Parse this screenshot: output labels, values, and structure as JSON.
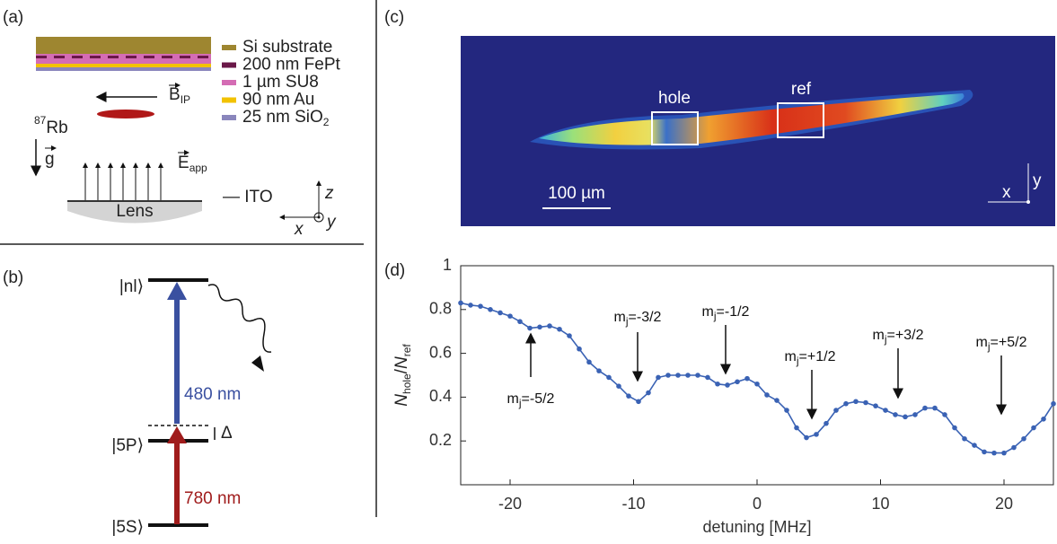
{
  "panels": {
    "a": {
      "label": "(a)",
      "layers": [
        {
          "name": "Si substrate",
          "color": "#9e8630"
        },
        {
          "name": "200 nm FePt",
          "color": "#6a1848"
        },
        {
          "name": "1 µm SU8",
          "color": "#d46cb4"
        },
        {
          "name": "90 nm Au",
          "color": "#f2c200"
        },
        {
          "name": "25 nm SiO",
          "sub": "2",
          "color": "#8a86bc"
        }
      ],
      "atom": {
        "sup": "87",
        "text": "Rb"
      },
      "field": {
        "symbol": "B",
        "sub": "IP"
      },
      "gravity": "g",
      "efield": {
        "symbol": "E",
        "sub": "app"
      },
      "lens": "Lens",
      "ito": "— ITO",
      "axes": {
        "z": "z",
        "x": "x",
        "y": "y"
      }
    },
    "b": {
      "label": "(b)",
      "upper": "|nl⟩",
      "middle": "|5P⟩",
      "lower": "|5S⟩",
      "blue": "480 nm",
      "red": "780 nm",
      "detuning": "Δ"
    },
    "c": {
      "label": "(c)",
      "hole": "hole",
      "ref": "ref",
      "scale": "100 µm",
      "x": "x",
      "y": "y"
    },
    "d": {
      "label": "(d)"
    }
  },
  "chart_data": {
    "type": "line",
    "color": "#3a62b4",
    "xlabel": "detuning [MHz]",
    "ylabel": {
      "base1": "N",
      "sub1": "hole",
      "slash": "/",
      "base2": "N",
      "sub2": "ref"
    },
    "xlim": [
      -24,
      24
    ],
    "xticks": [
      -20,
      -10,
      0,
      10,
      20
    ],
    "ylim": [
      0,
      1
    ],
    "yticks": [
      0.2,
      0.4,
      0.6,
      0.8,
      1
    ],
    "x": [
      -24,
      -23.2,
      -22.4,
      -21.6,
      -20.8,
      -20,
      -19.2,
      -18.4,
      -17.6,
      -16.8,
      -16,
      -15.2,
      -14.4,
      -13.6,
      -12.8,
      -12,
      -11.2,
      -10.4,
      -9.6,
      -8.8,
      -8,
      -7.2,
      -6.4,
      -5.6,
      -4.8,
      -4,
      -3.2,
      -2.4,
      -1.6,
      -0.8,
      0,
      0.8,
      1.6,
      2.4,
      3.2,
      4,
      4.8,
      5.6,
      6.4,
      7.2,
      8,
      8.8,
      9.6,
      10.4,
      11.2,
      12,
      12.8,
      13.6,
      14.4,
      15.2,
      16,
      16.8,
      17.6,
      18.4,
      19.2,
      20,
      20.8,
      21.6,
      22.4,
      23.2,
      24
    ],
    "values": [
      0.83,
      0.82,
      0.815,
      0.8,
      0.785,
      0.77,
      0.745,
      0.715,
      0.72,
      0.725,
      0.71,
      0.68,
      0.62,
      0.56,
      0.52,
      0.49,
      0.45,
      0.405,
      0.38,
      0.42,
      0.49,
      0.5,
      0.5,
      0.5,
      0.5,
      0.49,
      0.46,
      0.455,
      0.47,
      0.485,
      0.46,
      0.41,
      0.385,
      0.34,
      0.26,
      0.215,
      0.23,
      0.28,
      0.34,
      0.37,
      0.38,
      0.375,
      0.36,
      0.34,
      0.32,
      0.31,
      0.32,
      0.35,
      0.35,
      0.32,
      0.26,
      0.21,
      0.18,
      0.15,
      0.145,
      0.145,
      0.17,
      0.21,
      0.26,
      0.3,
      0.37
    ],
    "annotations": [
      {
        "base": "m",
        "sub": "j",
        "rest": "=-5/2"
      },
      {
        "base": "m",
        "sub": "j",
        "rest": "=-3/2"
      },
      {
        "base": "m",
        "sub": "j",
        "rest": "=-1/2"
      },
      {
        "base": "m",
        "sub": "j",
        "rest": "=+1/2"
      },
      {
        "base": "m",
        "sub": "j",
        "rest": "=+3/2"
      },
      {
        "base": "m",
        "sub": "j",
        "rest": "=+5/2"
      }
    ]
  }
}
